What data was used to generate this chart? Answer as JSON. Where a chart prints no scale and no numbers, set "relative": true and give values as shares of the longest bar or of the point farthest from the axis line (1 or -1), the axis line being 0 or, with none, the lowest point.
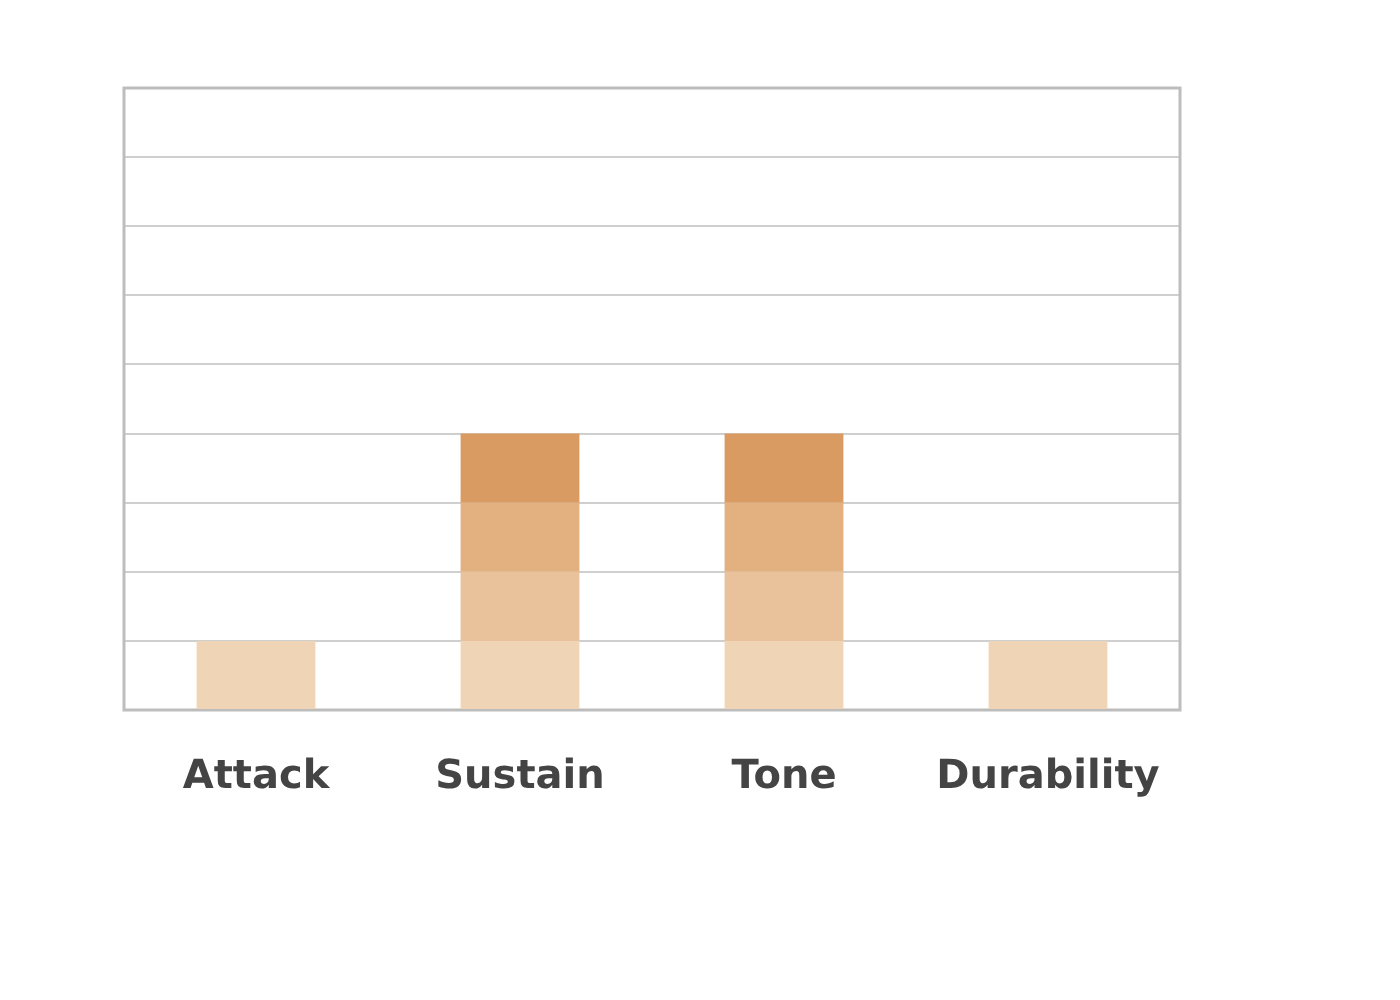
{
  "chart_data": {
    "type": "bar",
    "stacked": true,
    "relative": true,
    "grid": "y",
    "legend": false,
    "categories": [
      "Attack",
      "Sustain",
      "Tone",
      "Durability"
    ],
    "series": [
      {
        "color": "#f0d4b6",
        "values": [
          0.25,
          0.25,
          0.25,
          0.25
        ]
      },
      {
        "color": "#e9c29b",
        "values": [
          null,
          0.25,
          0.25,
          null
        ]
      },
      {
        "color": "#e3b080",
        "values": [
          null,
          0.25,
          0.25,
          null
        ]
      },
      {
        "color": "#d99b62",
        "values": [
          null,
          0.25,
          0.25,
          null
        ]
      }
    ]
  }
}
